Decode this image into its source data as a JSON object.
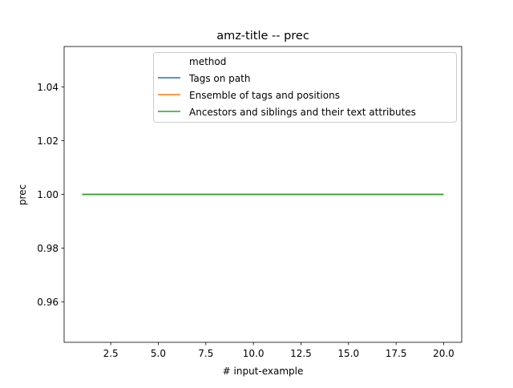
{
  "chart_data": {
    "type": "line",
    "title": "amz-title -- prec",
    "xlabel": "# input-example",
    "ylabel": "prec",
    "xlim": [
      0.05,
      20.95
    ],
    "ylim": [
      0.945,
      1.055
    ],
    "xticks": [
      2.5,
      5.0,
      7.5,
      10.0,
      12.5,
      15.0,
      17.5,
      20.0
    ],
    "xtick_labels": [
      "2.5",
      "5.0",
      "7.5",
      "10.0",
      "12.5",
      "15.0",
      "17.5",
      "20.0"
    ],
    "yticks": [
      0.96,
      0.98,
      1.0,
      1.02,
      1.04
    ],
    "ytick_labels": [
      "0.96",
      "0.98",
      "1.00",
      "1.02",
      "1.04"
    ],
    "grid": false,
    "legend": {
      "title": "method",
      "placement": "upper right"
    },
    "x": [
      1,
      2,
      3,
      4,
      5,
      6,
      7,
      8,
      9,
      10,
      11,
      12,
      13,
      14,
      15,
      16,
      17,
      18,
      19,
      20
    ],
    "series": [
      {
        "name": "Tags on path",
        "color": "#1f77b4",
        "values": [
          1,
          1,
          1,
          1,
          1,
          1,
          1,
          1,
          1,
          1,
          1,
          1,
          1,
          1,
          1,
          1,
          1,
          1,
          1,
          1
        ]
      },
      {
        "name": "Ensemble of tags and positions",
        "color": "#ff7f0e",
        "values": [
          1,
          1,
          1,
          1,
          1,
          1,
          1,
          1,
          1,
          1,
          1,
          1,
          1,
          1,
          1,
          1,
          1,
          1,
          1,
          1
        ]
      },
      {
        "name": "Ancestors and siblings and their text attributes",
        "color": "#2ca02c",
        "values": [
          1,
          1,
          1,
          1,
          1,
          1,
          1,
          1,
          1,
          1,
          1,
          1,
          1,
          1,
          1,
          1,
          1,
          1,
          1,
          1
        ]
      }
    ]
  }
}
